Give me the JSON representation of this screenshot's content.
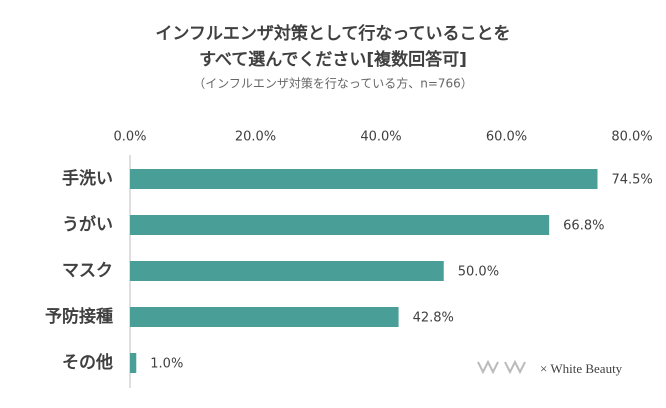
{
  "chart_data": {
    "type": "barh",
    "title_lines": [
      "インフルエンザ対策として行なっていることを",
      "すべて選んでください[複数回答可]"
    ],
    "subtitle": "（インフルエンザ対策を行なっている方、n=766）",
    "categories": [
      "手洗い",
      "うがい",
      "マスク",
      "予防接種",
      "その他"
    ],
    "values": [
      74.5,
      66.8,
      50.0,
      42.8,
      1.0
    ],
    "value_labels": [
      "74.5%",
      "66.8%",
      "50.0%",
      "42.8%",
      "1.0%"
    ],
    "color": "#4a9e98",
    "xlim": [
      0,
      80
    ],
    "xticks": [
      {
        "value": 0,
        "label": "0.0%"
      },
      {
        "value": 20,
        "label": "20.0%"
      },
      {
        "value": 40,
        "label": "40.0%"
      },
      {
        "value": 60,
        "label": "60.0%"
      },
      {
        "value": 80,
        "label": "80.0%"
      }
    ],
    "grid": false,
    "watermark": "× White Beauty"
  }
}
